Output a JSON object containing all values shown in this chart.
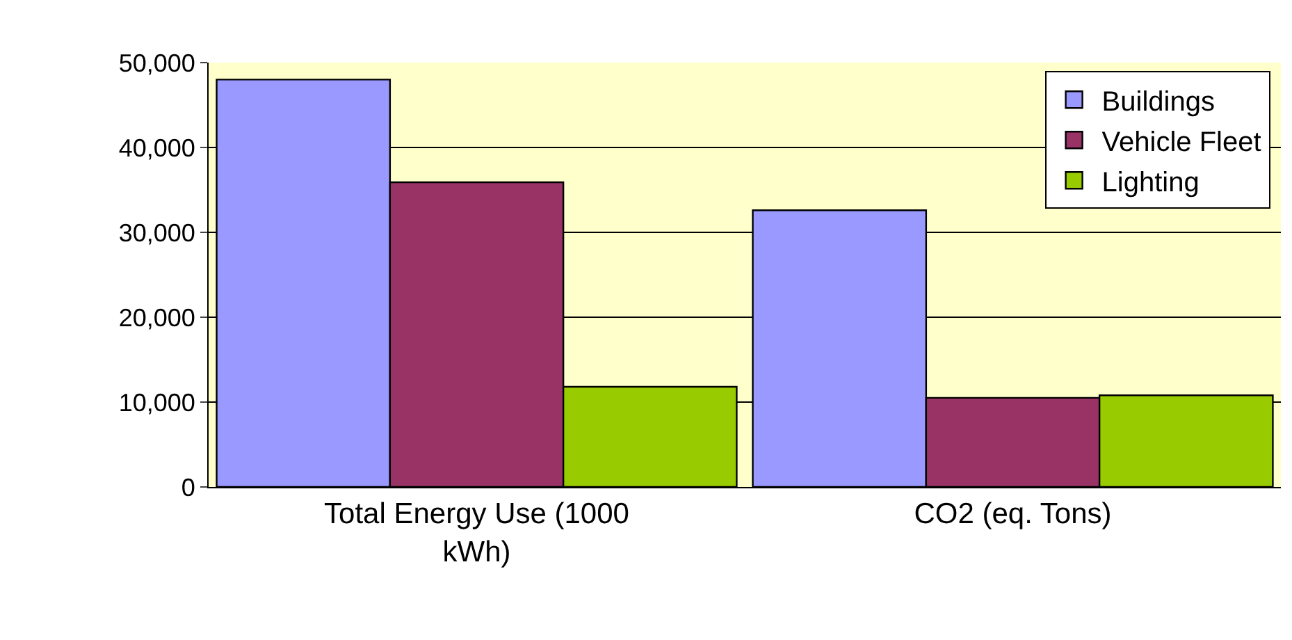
{
  "chart_data": {
    "type": "bar",
    "categories": [
      "Total Energy Use (1000 kWh)",
      "CO2 (eq. Tons)"
    ],
    "series": [
      {
        "name": "Buildings",
        "color": "#9999ff",
        "values": [
          48000,
          32600
        ]
      },
      {
        "name": "Vehicle Fleet",
        "color": "#993366",
        "values": [
          35900,
          10500
        ]
      },
      {
        "name": "Lighting",
        "color": "#99cc00",
        "values": [
          11800,
          10800
        ]
      }
    ],
    "ylim": [
      0,
      50000
    ],
    "yticks": [
      {
        "value": 0,
        "label": "0"
      },
      {
        "value": 10000,
        "label": "10,000"
      },
      {
        "value": 20000,
        "label": "20,000"
      },
      {
        "value": 30000,
        "label": "30,000"
      },
      {
        "value": 40000,
        "label": "40,000"
      },
      {
        "value": 50000,
        "label": "50,000"
      }
    ],
    "grid": "y",
    "legend": "top right"
  }
}
